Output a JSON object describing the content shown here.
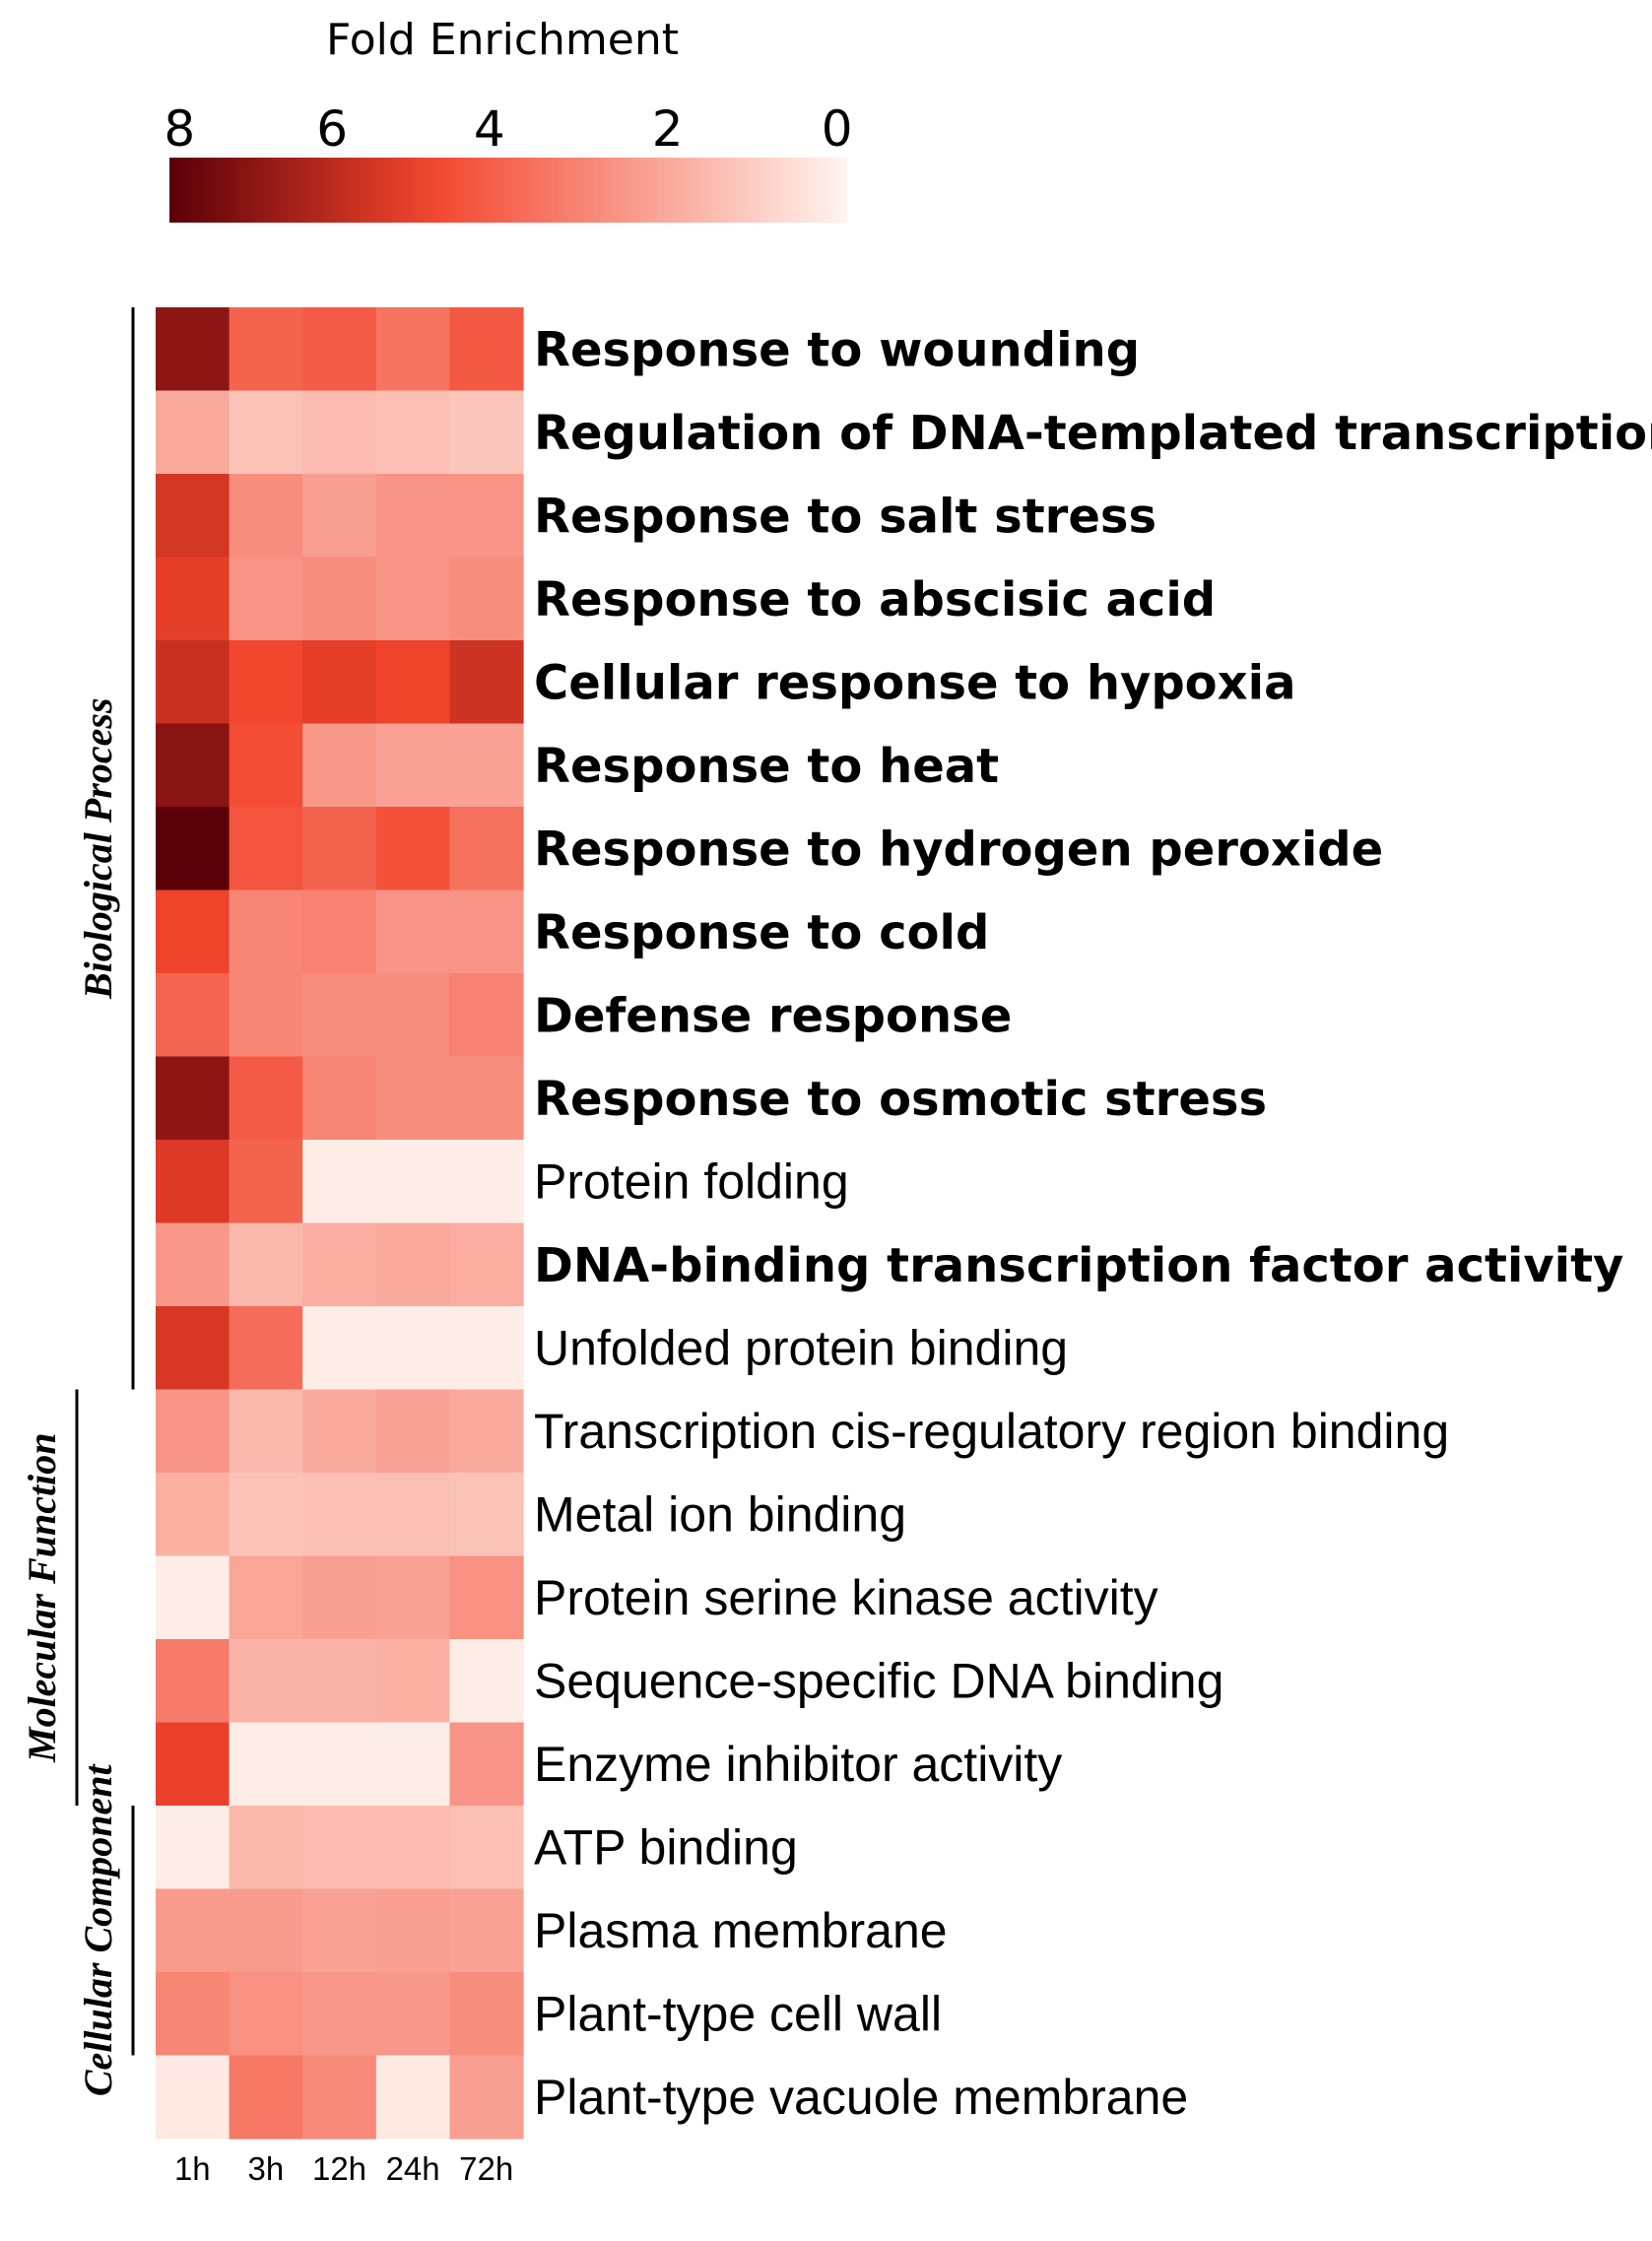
{
  "chart_data": {
    "type": "heatmap",
    "title": "",
    "legend": {
      "title": "Fold Enrichment",
      "ticks": [
        "8",
        "6",
        "4",
        "2",
        "0"
      ],
      "range": [
        8,
        0
      ],
      "color_low": "#fff4ef",
      "color_mid": "#f2442c",
      "color_high": "#5a0008"
    },
    "columns": [
      "1h",
      "3h",
      "12h",
      "24h",
      "72h"
    ],
    "groups": [
      {
        "name": "Biological Process",
        "rows": [
          0,
          12
        ]
      },
      {
        "name": "Molecular Function",
        "rows": [
          13,
          17
        ]
      },
      {
        "name": "Cellular Component",
        "rows": [
          18,
          20
        ]
      }
    ],
    "rows": [
      {
        "label": "Response to wounding",
        "bold": true,
        "values": [
          7.0,
          4.1,
          4.3,
          3.6,
          4.4
        ]
      },
      {
        "label": "Regulation of DNA-templated transcription",
        "bold": true,
        "values": [
          2.1,
          1.4,
          1.6,
          1.5,
          1.3
        ]
      },
      {
        "label": "Response to salt stress",
        "bold": true,
        "values": [
          5.6,
          2.9,
          2.4,
          2.7,
          2.7
        ]
      },
      {
        "label": "Response to abscisic acid",
        "bold": true,
        "values": [
          5.2,
          2.7,
          2.9,
          2.7,
          2.9
        ]
      },
      {
        "label": "Cellular response to hypoxia",
        "bold": true,
        "values": [
          5.8,
          4.9,
          5.2,
          5.0,
          5.7
        ]
      },
      {
        "label": "Response to heat",
        "bold": true,
        "values": [
          7.1,
          4.7,
          2.6,
          2.3,
          2.3
        ]
      },
      {
        "label": "Response to hydrogen peroxide",
        "bold": true,
        "values": [
          8.0,
          4.5,
          4.1,
          4.6,
          3.7
        ]
      },
      {
        "label": "Response to cold",
        "bold": true,
        "values": [
          5.0,
          3.1,
          3.2,
          2.7,
          2.7
        ]
      },
      {
        "label": "Defense response",
        "bold": true,
        "values": [
          4.0,
          3.1,
          2.9,
          2.9,
          3.2
        ]
      },
      {
        "label": "Response to osmotic stress",
        "bold": true,
        "values": [
          7.0,
          4.3,
          3.1,
          2.9,
          2.9
        ]
      },
      {
        "label": "Protein folding",
        "bold": false,
        "values": [
          5.4,
          4.1,
          0.2,
          0.2,
          0.2
        ]
      },
      {
        "label": "DNA-binding transcription factor activity",
        "bold": true,
        "values": [
          2.6,
          1.7,
          2.0,
          2.1,
          2.0
        ]
      },
      {
        "label": "Unfolded protein binding",
        "bold": false,
        "values": [
          5.5,
          3.8,
          0.2,
          0.2,
          0.2
        ]
      },
      {
        "label": "Transcription cis-regulatory region binding",
        "bold": false,
        "values": [
          2.7,
          1.7,
          2.1,
          2.3,
          2.1
        ]
      },
      {
        "label": "Metal ion binding",
        "bold": false,
        "values": [
          1.9,
          1.4,
          1.5,
          1.5,
          1.4
        ]
      },
      {
        "label": "Protein serine kinase activity",
        "bold": false,
        "values": [
          0.2,
          2.2,
          2.4,
          2.3,
          2.8
        ]
      },
      {
        "label": "Sequence-specific DNA binding",
        "bold": false,
        "values": [
          3.4,
          1.8,
          1.8,
          1.9,
          0.2
        ]
      },
      {
        "label": "Enzyme inhibitor activity",
        "bold": false,
        "values": [
          5.1,
          0.2,
          0.2,
          0.2,
          2.7
        ]
      },
      {
        "label": "ATP binding",
        "bold": false,
        "values": [
          0.2,
          1.7,
          1.6,
          1.6,
          1.5
        ]
      },
      {
        "label": "Plasma membrane",
        "bold": false,
        "values": [
          2.5,
          2.5,
          2.3,
          2.4,
          2.3
        ]
      },
      {
        "label": "Plant-type cell wall",
        "bold": false,
        "values": [
          3.1,
          2.8,
          2.6,
          2.6,
          2.9
        ]
      },
      {
        "label": "Plant-type vacuole membrane",
        "bold": false,
        "values": [
          0.3,
          3.5,
          3.0,
          0.3,
          2.4
        ]
      }
    ]
  }
}
